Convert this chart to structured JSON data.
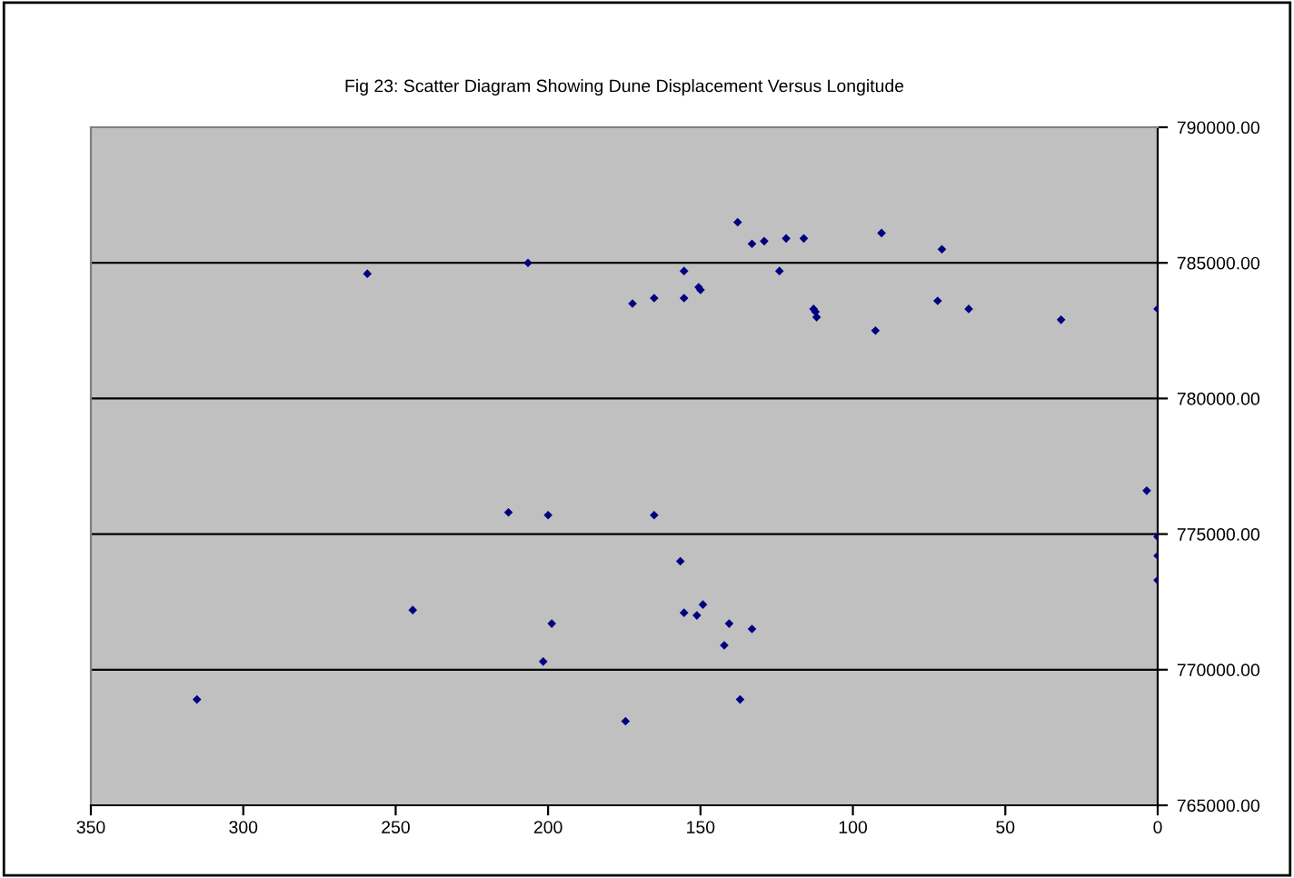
{
  "chart_data": {
    "type": "scatter",
    "title": "Fig 23: Scatter Diagram Showing Dune Displacement Versus Longitude",
    "x": [
      259.3,
      206.6,
      172.3,
      213,
      200,
      244.4,
      198.8,
      201.6,
      315.2,
      174.6,
      165.2,
      155.4,
      155.4,
      150.6,
      150,
      137.8,
      133.1,
      129.1,
      124.1,
      121.9,
      116.1,
      112.9,
      112.3,
      111.9,
      92.6,
      90.6,
      72.2,
      70.8,
      62.0,
      31.7,
      0,
      165.2,
      156.6,
      155.4,
      151.2,
      149.2,
      140.6,
      142.2,
      133.1,
      137.0,
      3.6,
      0,
      0,
      0
    ],
    "values": [
      784600,
      785000,
      783500,
      775800,
      775700,
      772200,
      771700,
      770300,
      768900,
      768100,
      783700,
      784700,
      783700,
      784100,
      784000,
      786500,
      785700,
      785800,
      784700,
      785900,
      785900,
      783300,
      783200,
      783000,
      782500,
      786100,
      783600,
      785500,
      783300,
      782900,
      783300,
      775700,
      774000,
      772100,
      772000,
      772400,
      771700,
      770900,
      771500,
      768900,
      776600,
      774900,
      774200,
      773300
    ],
    "color": "#000080",
    "marker": "diamond",
    "xlim": [
      350,
      0
    ],
    "xticks": [
      350,
      300,
      250,
      200,
      150,
      100,
      50,
      0
    ],
    "ylim": [
      765000,
      790000
    ],
    "yticks": [
      {
        "value": 765000,
        "label": "765000.00"
      },
      {
        "value": 770000,
        "label": "770000.00"
      },
      {
        "value": 775000,
        "label": "775000.00"
      },
      {
        "value": 780000,
        "label": "780000.00"
      },
      {
        "value": 785000,
        "label": "785000.00"
      },
      {
        "value": 790000,
        "label": "790000.00"
      }
    ],
    "grid": "y"
  }
}
